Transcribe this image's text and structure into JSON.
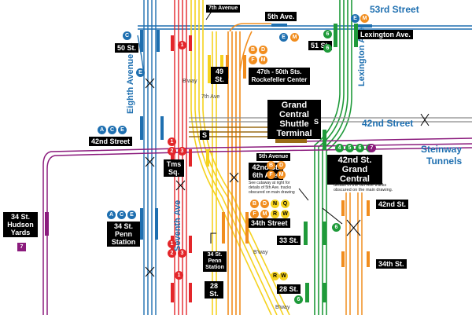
{
  "streets": {
    "s53": "53rd Street",
    "s42": "42nd Street",
    "steinway": "Steinway",
    "tunnels": "Tunnels",
    "eighth": "Eighth Avenue",
    "seventh": "Seventh Ave",
    "lex": "Lexington Ave",
    "bway": "B'way",
    "bway2": "B'way",
    "bway3": "B'way",
    "seventh_small": "7th Ave",
    "fifth_ave_small": "5th Avenue"
  },
  "stations": {
    "s50": "50 St.",
    "s7av": "7th Avenue",
    "s5av": "5th Ave.",
    "lexav": "Lexington Ave.",
    "s51": "51 St.",
    "s49": "49 St.",
    "rock": "47th - 50th Sts. Rockefeller Center",
    "gcst": "Grand Central Shuttle Terminal",
    "s42_8": "42nd Street",
    "tms": "Tms Sq.",
    "s42_6": "42nd St. 6th Ave.",
    "gc42": "42nd St. Grand Central",
    "hudson": "34 St. Hudson Yards",
    "penn8": "34 St. Penn Station",
    "penn7": "34 St. Penn Station",
    "s34": "34th Street",
    "s33": "33 St.",
    "s28_7": "28 St.",
    "s28_b": "28 St.",
    "inset42": "42nd St.",
    "inset34": "34th St.",
    "s_shuttle": "S",
    "s_shuttle2": "S"
  },
  "notes": {
    "cutaway": "See cutaway at right for details of 5th Ave. tracks obscured on main drawing",
    "details": "details of the 6th Ave tracks obscured on the main drawing."
  },
  "colors": {
    "blue": "#1e6fb0",
    "red": "#e3262a",
    "yellow": "#f5d21f",
    "orange": "#f18d1e",
    "green": "#1f9a3a",
    "purple": "#8b1b7d",
    "brown": "#9a6b16",
    "grey": "#8a8a8a"
  },
  "bullets": [
    {
      "t": "C",
      "c": "blue"
    },
    {
      "t": "E",
      "c": "blue"
    },
    {
      "t": "E",
      "c": "blue"
    },
    {
      "t": "M",
      "c": "orange"
    },
    {
      "t": "E",
      "c": "blue"
    },
    {
      "t": "M",
      "c": "orange"
    },
    {
      "t": "6",
      "c": "green"
    },
    {
      "t": "1",
      "c": "red"
    },
    {
      "t": "B",
      "c": "orange"
    },
    {
      "t": "D",
      "c": "orange"
    },
    {
      "t": "F",
      "c": "orange"
    },
    {
      "t": "M",
      "c": "orange"
    },
    {
      "t": "A",
      "c": "blue"
    },
    {
      "t": "C",
      "c": "blue"
    },
    {
      "t": "E",
      "c": "blue"
    },
    {
      "t": "1",
      "c": "red"
    },
    {
      "t": "2",
      "c": "red"
    },
    {
      "t": "3",
      "c": "red"
    },
    {
      "t": "B",
      "c": "orange"
    },
    {
      "t": "D",
      "c": "orange"
    },
    {
      "t": "F",
      "c": "orange"
    },
    {
      "t": "M",
      "c": "orange"
    },
    {
      "t": "4",
      "c": "green"
    },
    {
      "t": "5",
      "c": "green"
    },
    {
      "t": "6",
      "c": "green"
    },
    {
      "t": "7",
      "c": "green"
    },
    {
      "t": "7",
      "c": "purple"
    },
    {
      "t": "A",
      "c": "blue"
    },
    {
      "t": "C",
      "c": "blue"
    },
    {
      "t": "E",
      "c": "blue"
    },
    {
      "t": "B",
      "c": "orange"
    },
    {
      "t": "D",
      "c": "orange"
    },
    {
      "t": "N",
      "c": "yellow"
    },
    {
      "t": "Q",
      "c": "yellow"
    },
    {
      "t": "F",
      "c": "orange"
    },
    {
      "t": "M",
      "c": "orange"
    },
    {
      "t": "R",
      "c": "yellow"
    },
    {
      "t": "W",
      "c": "yellow"
    },
    {
      "t": "1",
      "c": "red"
    },
    {
      "t": "2",
      "c": "red"
    },
    {
      "t": "3",
      "c": "red"
    },
    {
      "t": "6",
      "c": "green"
    },
    {
      "t": "7",
      "c": "purple"
    },
    {
      "t": "R",
      "c": "yellow"
    },
    {
      "t": "W",
      "c": "yellow"
    },
    {
      "t": "1",
      "c": "red"
    },
    {
      "t": "6",
      "c": "green"
    },
    {
      "t": "6",
      "c": "green"
    }
  ]
}
